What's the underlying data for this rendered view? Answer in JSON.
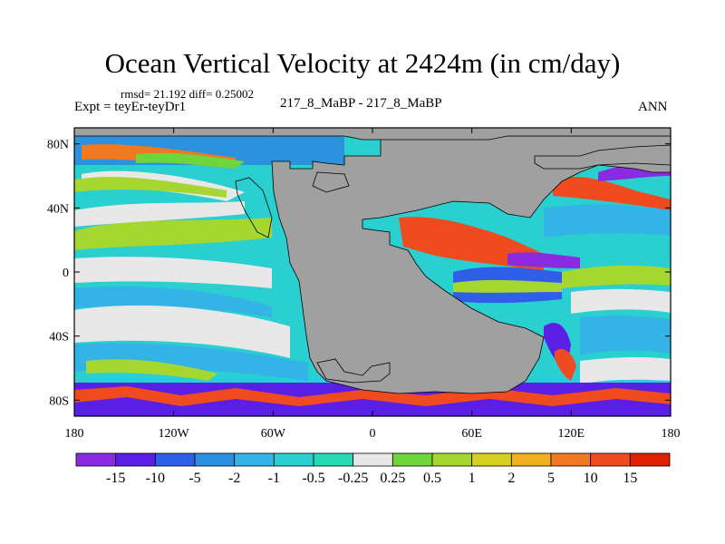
{
  "chart_data": {
    "type": "heatmap",
    "title": "Ocean Vertical Velocity at 2424m (in cm/day)",
    "stats": "rmsd= 21.192 diff= 0.25002",
    "left_label": "Expt = teyEr-teyDr1",
    "center_label": "217_8_MaBP - 217_8_MaBP",
    "right_label": "ANN",
    "x_ticks": [
      "180",
      "120W",
      "60W",
      "0",
      "60E",
      "120E",
      "180"
    ],
    "y_ticks": [
      "80N",
      "40N",
      "0",
      "40S",
      "80S"
    ],
    "legend": {
      "labels": [
        "-15",
        "-10",
        "-5",
        "-2",
        "-1",
        "-0.5",
        "-0.25",
        "0.25",
        "0.5",
        "1",
        "2",
        "5",
        "10",
        "15"
      ],
      "colors": [
        "#8a2be2",
        "#5a1fe6",
        "#2f5ee8",
        "#2a8fe0",
        "#33b3e6",
        "#2ad0d0",
        "#25d9b3",
        "#e8e8e8",
        "#6ed63a",
        "#a6d630",
        "#d8d020",
        "#f0b020",
        "#f07820",
        "#f04a20",
        "#e02000"
      ]
    },
    "land_color": "#a0a0a0"
  }
}
